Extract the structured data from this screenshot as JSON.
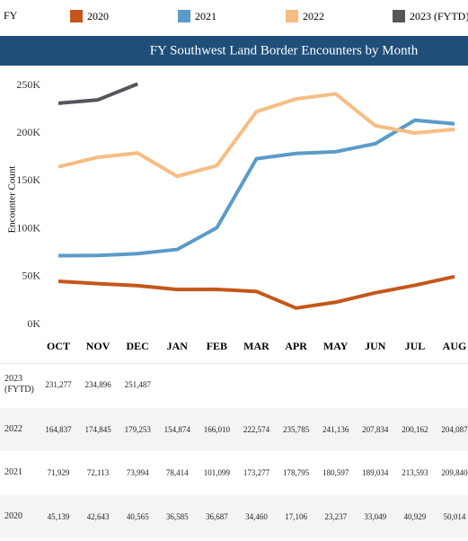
{
  "chart_data": {
    "type": "line",
    "title": "FY Southwest Land Border Encounters by Month",
    "legend_title": "FY",
    "ylabel": "Encounter Count",
    "categories": [
      "OCT",
      "NOV",
      "DEC",
      "JAN",
      "FEB",
      "MAR",
      "APR",
      "MAY",
      "JUN",
      "JUL",
      "AUG"
    ],
    "ylim": [
      0,
      250000
    ],
    "yticks": [
      {
        "value": 0,
        "label": "0K"
      },
      {
        "value": 50000,
        "label": "50K"
      },
      {
        "value": 100000,
        "label": "100K"
      },
      {
        "value": 150000,
        "label": "150K"
      },
      {
        "value": 200000,
        "label": "200K"
      },
      {
        "value": 250000,
        "label": "250K"
      }
    ],
    "grid": false,
    "series": [
      {
        "name": "2020",
        "color": "#c5561b",
        "values": [
          45139,
          42643,
          40565,
          36585,
          36687,
          34460,
          17106,
          23237,
          33049,
          40929,
          50014
        ],
        "value_labels": [
          "45,139",
          "42,643",
          "40,565",
          "36,585",
          "36,687",
          "34,460",
          "17,106",
          "23,237",
          "33,049",
          "40,929",
          "50,014"
        ]
      },
      {
        "name": "2021",
        "color": "#5b9bc8",
        "values": [
          71929,
          72113,
          73994,
          78414,
          101099,
          173277,
          178795,
          180597,
          189034,
          213593,
          209840
        ],
        "value_labels": [
          "71,929",
          "72,113",
          "73,994",
          "78,414",
          "101,099",
          "173,277",
          "178,795",
          "180,597",
          "189,034",
          "213,593",
          "209,840"
        ]
      },
      {
        "name": "2022",
        "color": "#f6bd82",
        "values": [
          164837,
          174845,
          179253,
          154874,
          166010,
          222574,
          235785,
          241136,
          207834,
          200162,
          204087
        ],
        "value_labels": [
          "164,837",
          "174,845",
          "179,253",
          "154,874",
          "166,010",
          "222,574",
          "235,785",
          "241,136",
          "207,834",
          "200,162",
          "204,087"
        ]
      },
      {
        "name": "2023 (FYTD)",
        "color": "#54565b",
        "values": [
          231277,
          234896,
          251487,
          null,
          null,
          null,
          null,
          null,
          null,
          null,
          null
        ],
        "value_labels": [
          "231,277",
          "234,896",
          "251,487",
          null,
          null,
          null,
          null,
          null,
          null,
          null,
          null
        ]
      }
    ]
  }
}
